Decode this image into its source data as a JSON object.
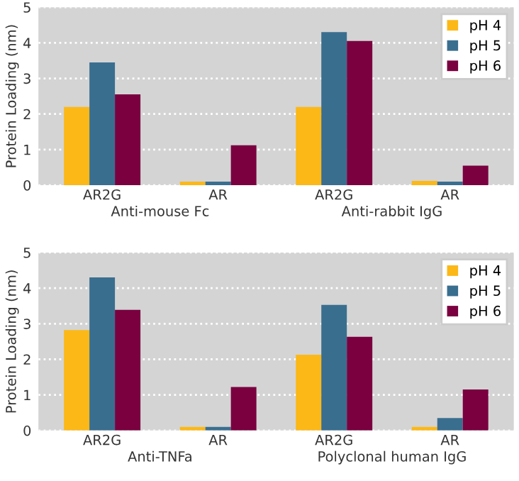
{
  "chart_data": [
    {
      "type": "bar",
      "ylabel": "Protein Loading (nm)",
      "categories": [
        "AR2G",
        "AR",
        "AR2G",
        "AR"
      ],
      "series": [
        {
          "name": "pH 4",
          "color": "#fbb817",
          "values": [
            2.2,
            0.1,
            2.2,
            0.12
          ]
        },
        {
          "name": "pH 5",
          "color": "#3a6e8f",
          "values": [
            3.45,
            0.1,
            4.3,
            0.1
          ]
        },
        {
          "name": "pH 6",
          "color": "#7a0040",
          "values": [
            2.55,
            1.12,
            4.05,
            0.55
          ]
        }
      ],
      "ylim": [
        0,
        5
      ],
      "yticks": [
        0,
        1,
        2,
        3,
        4,
        5
      ],
      "grid": "y",
      "legend": "top right",
      "annotations": [
        "Anti-mouse Fc",
        "Anti-rabbit IgG"
      ]
    },
    {
      "type": "bar",
      "ylabel": "Protein Loading (nm)",
      "categories": [
        "AR2G",
        "AR",
        "AR2G",
        "AR"
      ],
      "series": [
        {
          "name": "pH 4",
          "color": "#fbb817",
          "values": [
            2.82,
            0.1,
            2.13,
            0.1
          ]
        },
        {
          "name": "pH 5",
          "color": "#3a6e8f",
          "values": [
            4.3,
            0.1,
            3.53,
            0.35
          ]
        },
        {
          "name": "pH 6",
          "color": "#7a0040",
          "values": [
            3.39,
            1.22,
            2.63,
            1.15
          ]
        }
      ],
      "ylim": [
        0,
        5
      ],
      "yticks": [
        0,
        1,
        2,
        3,
        4,
        5
      ],
      "grid": "y",
      "legend": "top right",
      "annotations": [
        "Anti-TNFa",
        "Polyclonal human IgG"
      ]
    }
  ]
}
